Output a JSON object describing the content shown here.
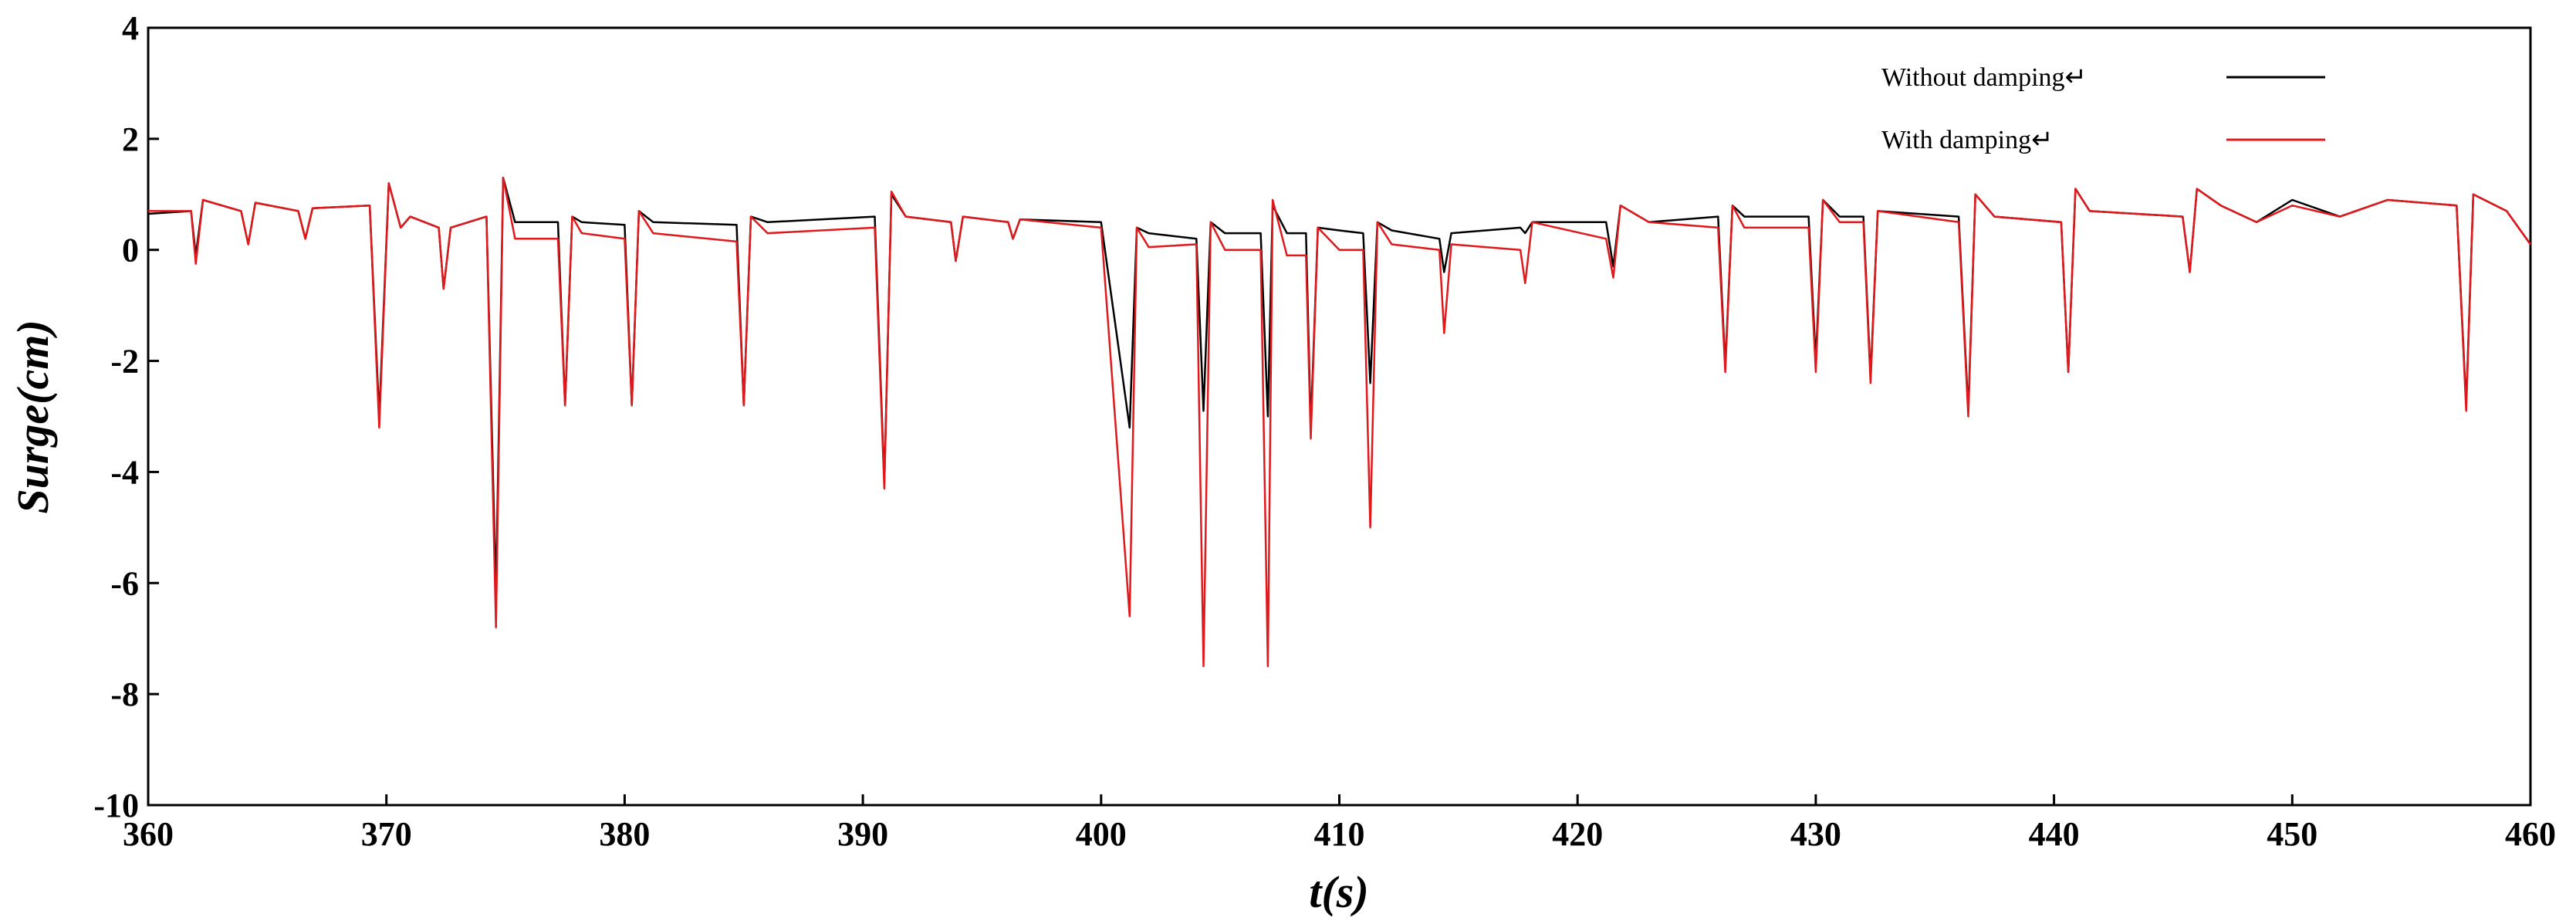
{
  "chart_data": {
    "type": "line",
    "x_label": "t(s)",
    "y_label": "Surge(cm)",
    "x": [
      360,
      361.8,
      362.0,
      362.3,
      363.9,
      364.2,
      364.5,
      366.3,
      366.6,
      366.9,
      369.3,
      369.7,
      370.1,
      370.6,
      371.0,
      372.2,
      372.4,
      372.7,
      374.2,
      374.6,
      374.9,
      375.4,
      377.2,
      377.5,
      377.8,
      378.2,
      380.0,
      380.3,
      380.6,
      381.2,
      384.7,
      385.0,
      385.3,
      386.0,
      390.5,
      390.9,
      391.2,
      391.8,
      393.7,
      393.9,
      394.2,
      396.1,
      396.3,
      396.6,
      400.0,
      401.2,
      401.5,
      402.0,
      404.0,
      404.3,
      404.6,
      405.2,
      406.7,
      407.0,
      407.2,
      407.8,
      408.6,
      408.8,
      409.1,
      410.0,
      411.0,
      411.3,
      411.6,
      412.2,
      414.2,
      414.4,
      414.7,
      417.6,
      417.8,
      418.1,
      421.2,
      421.5,
      421.8,
      423.0,
      425.9,
      426.2,
      426.5,
      427.0,
      429.7,
      430.0,
      430.3,
      431.0,
      432.0,
      432.3,
      432.6,
      436.0,
      436.4,
      436.7,
      437.5,
      440.3,
      440.6,
      440.9,
      441.5,
      445.4,
      445.7,
      446.0,
      447.0,
      448.5,
      450.0,
      452.0,
      454.0,
      456.9,
      457.3,
      457.6,
      459.0,
      460.0
    ],
    "series": [
      {
        "name": "Without damping↵",
        "color": "#000000",
        "values": [
          0.65,
          0.7,
          -0.1,
          0.9,
          0.7,
          0.1,
          0.85,
          0.7,
          0.2,
          0.75,
          0.8,
          -3.0,
          1.2,
          0.4,
          0.6,
          0.4,
          -0.7,
          0.4,
          0.6,
          -6.2,
          1.3,
          0.5,
          0.5,
          -2.8,
          0.6,
          0.5,
          0.45,
          -2.8,
          0.7,
          0.5,
          0.45,
          -2.8,
          0.6,
          0.5,
          0.6,
          -4.2,
          1.0,
          0.6,
          0.5,
          -0.2,
          0.6,
          0.5,
          0.2,
          0.55,
          0.5,
          -3.2,
          0.4,
          0.3,
          0.2,
          -2.9,
          0.5,
          0.3,
          0.3,
          -3.0,
          0.8,
          0.3,
          0.3,
          -3.2,
          0.4,
          0.35,
          0.3,
          -2.4,
          0.5,
          0.35,
          0.2,
          -0.4,
          0.3,
          0.4,
          0.3,
          0.5,
          0.5,
          -0.3,
          0.8,
          0.5,
          0.6,
          -2.1,
          0.8,
          0.6,
          0.6,
          -2.0,
          0.9,
          0.6,
          0.6,
          -2.3,
          0.7,
          0.6,
          -2.9,
          1.0,
          0.6,
          0.5,
          -2.2,
          1.1,
          0.7,
          0.6,
          -0.4,
          1.1,
          0.8,
          0.5,
          0.9,
          0.6,
          0.9,
          0.8,
          -2.8,
          1.0,
          0.7,
          0.1
        ]
      },
      {
        "name": "With damping↵",
        "color": "#e0191c",
        "values": [
          0.7,
          0.7,
          -0.25,
          0.9,
          0.7,
          0.1,
          0.85,
          0.7,
          0.2,
          0.75,
          0.8,
          -3.2,
          1.2,
          0.4,
          0.6,
          0.4,
          -0.7,
          0.4,
          0.6,
          -6.8,
          1.3,
          0.2,
          0.2,
          -2.8,
          0.6,
          0.3,
          0.2,
          -2.8,
          0.7,
          0.3,
          0.15,
          -2.8,
          0.6,
          0.3,
          0.4,
          -4.3,
          1.05,
          0.6,
          0.5,
          -0.2,
          0.6,
          0.5,
          0.2,
          0.55,
          0.4,
          -6.6,
          0.4,
          0.05,
          0.1,
          -7.5,
          0.5,
          0.0,
          0.0,
          -7.5,
          0.9,
          -0.1,
          -0.1,
          -3.4,
          0.4,
          0.0,
          0.0,
          -5.0,
          0.5,
          0.1,
          0.0,
          -1.5,
          0.1,
          0.0,
          -0.6,
          0.5,
          0.2,
          -0.5,
          0.8,
          0.5,
          0.4,
          -2.2,
          0.8,
          0.4,
          0.4,
          -2.2,
          0.9,
          0.5,
          0.5,
          -2.4,
          0.7,
          0.5,
          -3.0,
          1.0,
          0.6,
          0.5,
          -2.2,
          1.1,
          0.7,
          0.6,
          -0.4,
          1.1,
          0.8,
          0.5,
          0.8,
          0.6,
          0.9,
          0.8,
          -2.9,
          1.0,
          0.7,
          0.1
        ]
      }
    ],
    "xlim": [
      360,
      460
    ],
    "xticks": [
      360,
      370,
      380,
      390,
      400,
      410,
      420,
      430,
      440,
      450,
      460
    ],
    "ylim": [
      -10,
      4
    ],
    "yticks": [
      -10,
      -8,
      -6,
      -4,
      -2,
      0,
      2,
      4
    ],
    "legend": "upper right"
  }
}
